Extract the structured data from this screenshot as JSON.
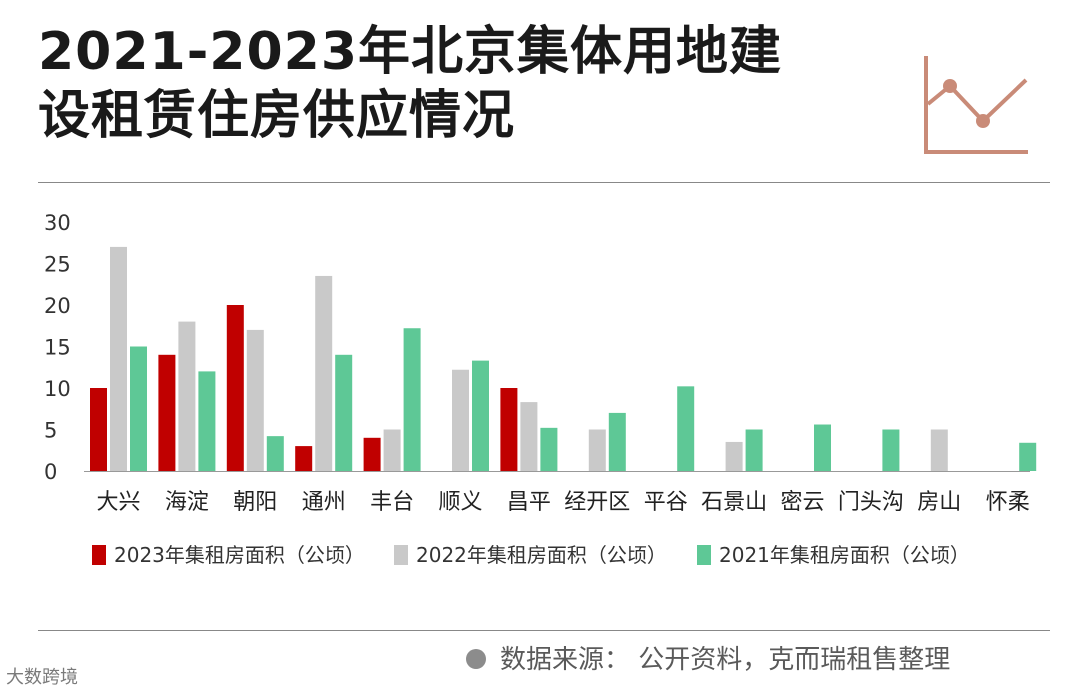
{
  "title_lines": [
    "2021-2023年北京集体用地建",
    "设租赁住房供应情况"
  ],
  "source": "数据来源：  公开资料，克而瑞租售整理",
  "watermark": "大数跨境",
  "colors": {
    "series_2023": "#c00000",
    "series_2022": "#c9c9c9",
    "series_2021": "#5ec896",
    "icon": "#c98b78"
  },
  "icon_name": "line-chart-icon",
  "chart_data": {
    "type": "bar",
    "categories": [
      "大兴",
      "海淀",
      "朝阳",
      "通州",
      "丰台",
      "顺义",
      "昌平",
      "经开区",
      "平谷",
      "石景山",
      "密云",
      "门头沟",
      "房山",
      "怀柔"
    ],
    "series": [
      {
        "name": "2023年集租房面积（公顷）",
        "values": [
          10,
          14,
          20,
          3,
          4,
          0,
          10,
          0,
          0,
          0,
          0,
          0,
          0,
          0
        ]
      },
      {
        "name": "2022年集租房面积（公顷）",
        "values": [
          27,
          18,
          17,
          23.5,
          5,
          12.2,
          8.3,
          5,
          0,
          3.5,
          0,
          0,
          5,
          0
        ]
      },
      {
        "name": "2021年集租房面积（公顷）",
        "values": [
          15,
          12,
          4.2,
          14,
          17.2,
          13.3,
          5.2,
          7,
          10.2,
          5,
          5.6,
          5,
          0,
          3.4
        ]
      }
    ],
    "yticks": [
      "0",
      "5",
      "10",
      "15",
      "20",
      "25",
      "30"
    ],
    "ylim": [
      0,
      30
    ],
    "legend": "bottom",
    "grid": false
  }
}
